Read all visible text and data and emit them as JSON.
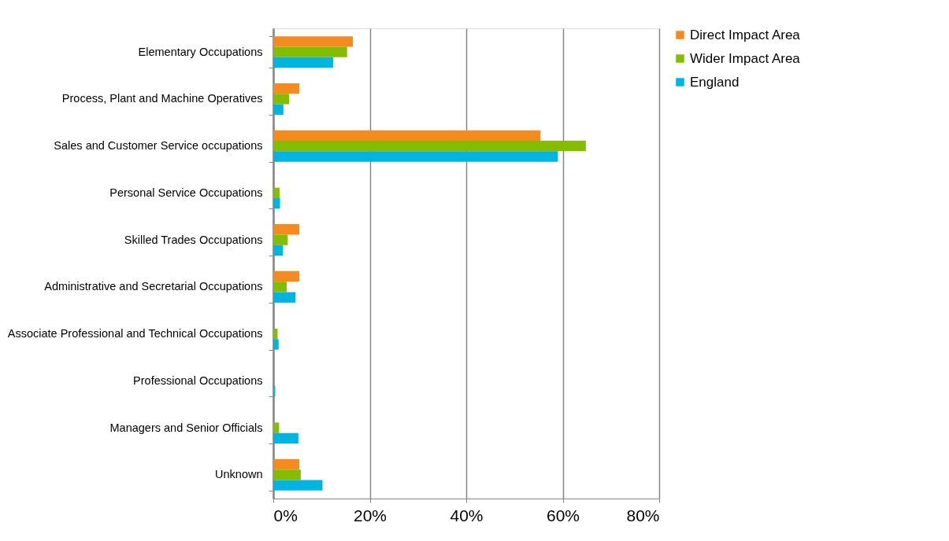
{
  "chart_data": {
    "type": "bar",
    "orientation": "horizontal",
    "categories": [
      "Elementary Occupations",
      "Process, Plant and Machine Operatives",
      "Sales and Customer Service occupations",
      "Personal Service Occupations",
      "Skilled Trades Occupations",
      "Administrative and Secretarial Occupations",
      "Associate Professional and Technical Occupations",
      "Professional Occupations",
      "Managers and Senior Officials",
      "Unknown"
    ],
    "series": [
      {
        "name": "Direct Impact Area",
        "color": "#f58b1f",
        "values": [
          16.5,
          5.4,
          55.4,
          0,
          5.4,
          5.4,
          0,
          0,
          0,
          5.4
        ]
      },
      {
        "name": "Wider Impact Area",
        "color": "#84bd00",
        "values": [
          15.3,
          3.3,
          64.8,
          1.3,
          3.0,
          2.8,
          0.9,
          0,
          1.2,
          5.7
        ]
      },
      {
        "name": "England",
        "color": "#00b4e1",
        "values": [
          12.4,
          2.1,
          59.0,
          1.4,
          2.0,
          4.6,
          1.1,
          0.4,
          5.2,
          10.2
        ]
      }
    ],
    "xlim": [
      0,
      80
    ],
    "xticks": [
      {
        "value": 0,
        "label": "0%"
      },
      {
        "value": 20,
        "label": "20%"
      },
      {
        "value": 40,
        "label": "40%"
      },
      {
        "value": 60,
        "label": "60%"
      },
      {
        "value": 80,
        "label": "80%"
      }
    ],
    "grid": "x",
    "legend": "right"
  }
}
